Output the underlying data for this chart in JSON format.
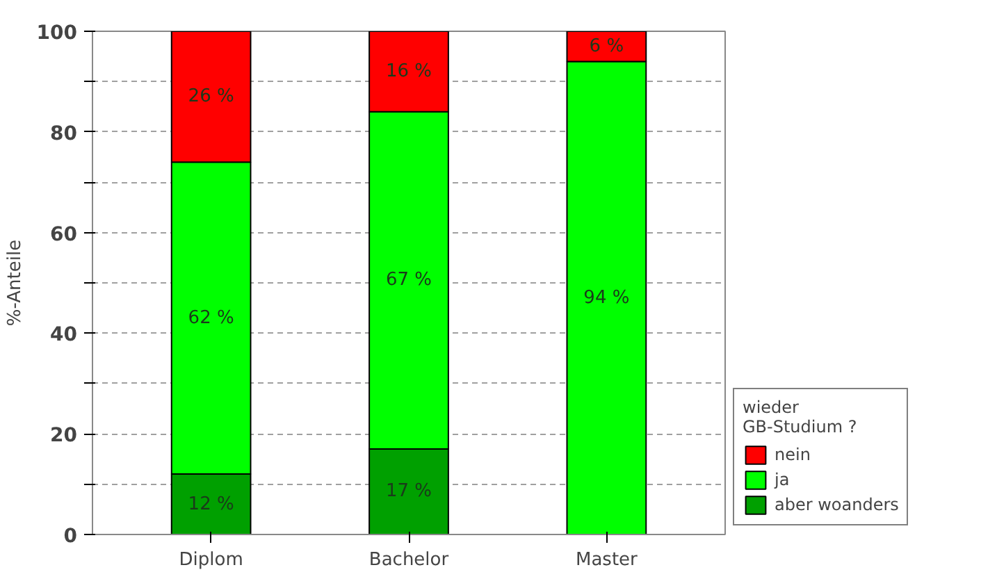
{
  "chart_data": {
    "type": "bar",
    "stacked": true,
    "ylabel": "%-Anteile",
    "legend_title": "wieder GB-Studium ?",
    "categories": [
      "Diplom",
      "Bachelor",
      "Master"
    ],
    "series": [
      {
        "name": "aber woanders",
        "color": "#00a000",
        "values": [
          12,
          17,
          0
        ],
        "value_labels": [
          "12 %",
          "17 %",
          null
        ]
      },
      {
        "name": "ja",
        "color": "#00ff00",
        "values": [
          62,
          67,
          94
        ],
        "value_labels": [
          "62 %",
          "67 %",
          "94 %"
        ]
      },
      {
        "name": "nein",
        "color": "#ff0000",
        "values": [
          26,
          16,
          6
        ],
        "value_labels": [
          "26 %",
          "16 %",
          "6 %"
        ]
      }
    ],
    "ylim": [
      0,
      100
    ],
    "yticks": [
      0,
      {
        "value": 10,
        "label": null
      },
      20,
      {
        "value": 30,
        "label": null
      },
      40,
      {
        "value": 50,
        "label": null
      },
      60,
      {
        "value": 70,
        "label": null
      },
      80,
      {
        "value": 90,
        "label": null
      },
      100
    ],
    "grid": "y",
    "legend": "bottom right"
  }
}
